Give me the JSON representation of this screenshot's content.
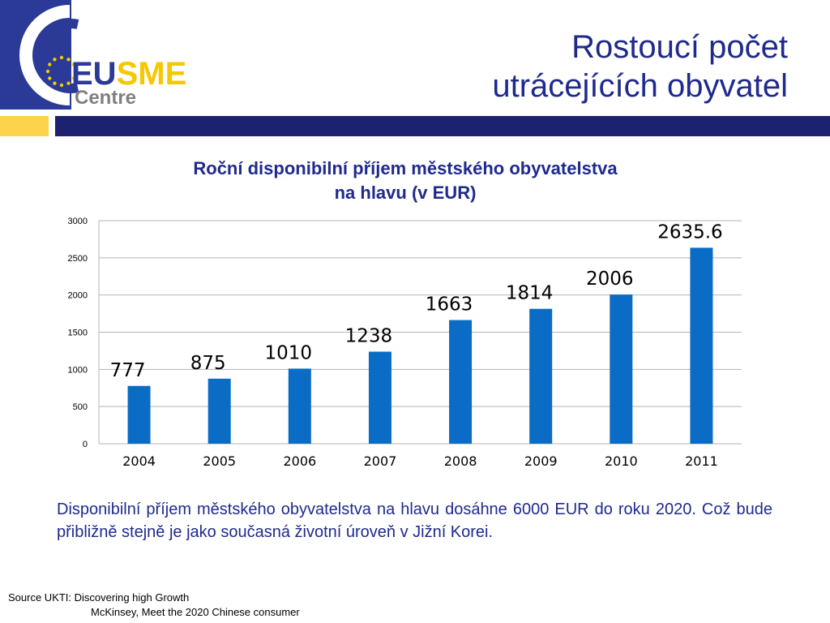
{
  "slide": {
    "title_lines": [
      "Rostoucí počet",
      "utrácejících obyvatel"
    ]
  },
  "logo": {
    "text_top": "EUSME",
    "text_bottom": "Centre",
    "colors": {
      "blue": "#2a3a96",
      "yellow": "#f5c800",
      "grey": "#808080"
    }
  },
  "colors": {
    "accent": "#1f2a8c",
    "bar": "#0a6cc4",
    "band_yellow": "#fcd34a",
    "band_navy": "#1c2270"
  },
  "chart_data": {
    "type": "bar",
    "title_lines": [
      "Roční disponibilní příjem městského obyvatelstva",
      "na hlavu (v EUR)"
    ],
    "categories": [
      "2004",
      "2005",
      "2006",
      "2007",
      "2008",
      "2009",
      "2010",
      "2011"
    ],
    "values": [
      777,
      875,
      1010,
      1238,
      1663,
      1814,
      2006,
      2635.6
    ],
    "data_labels": [
      "777",
      "875",
      "1010",
      "1238",
      "1663",
      "1814",
      "2006",
      "2635.6"
    ],
    "ylim": [
      0,
      3000
    ],
    "yticks": [
      0,
      500,
      1000,
      1500,
      2000,
      2500,
      3000
    ],
    "grid": true,
    "legend": false
  },
  "description": "Disponibilní příjem městského obyvatelstva na hlavu dosáhne 6000 EUR do roku 2020. Což bude přibližně stejně je jako současná životní úroveň v Jižní Korei.",
  "source": {
    "line1": "Source UKTI: Discovering high Growth",
    "line2": "McKinsey, Meet the 2020 Chinese consumer"
  }
}
